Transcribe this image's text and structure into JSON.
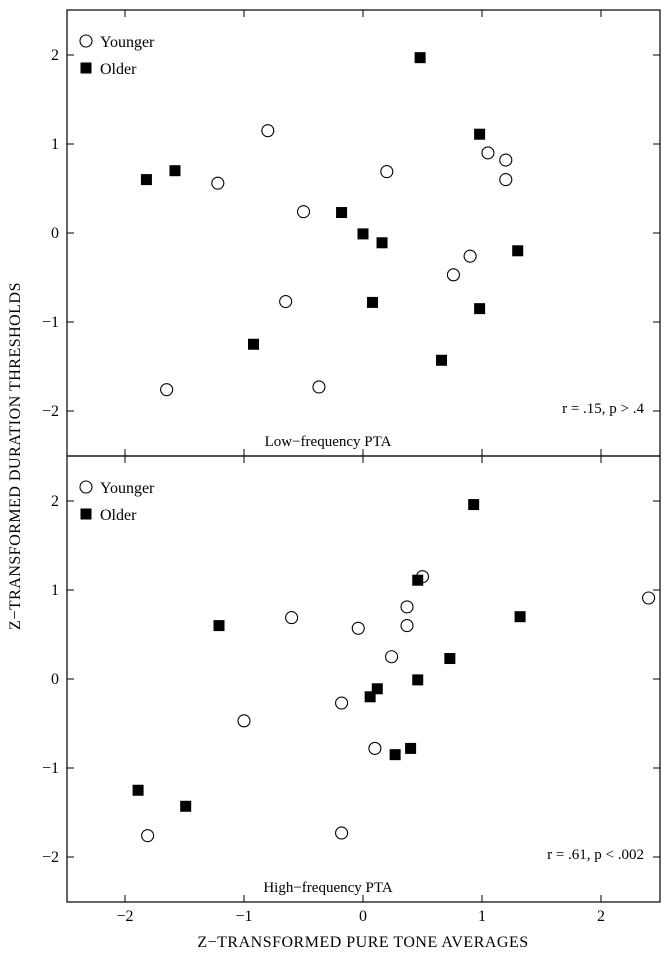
{
  "chart_data": {
    "type": "scatter",
    "xlabel": "Z−TRANSFORMED  PURE TONE  AVERAGES",
    "ylabel": "Z−TRANSFORMED  DURATION  THRESHOLDS",
    "xlim": [
      -2.5,
      2.5
    ],
    "x_ticks": [
      -2,
      -1,
      0,
      1,
      2
    ],
    "x_tick_labels": [
      "−2",
      "−1",
      "0",
      "1",
      "2"
    ],
    "grid": false,
    "legend_position": "top-left",
    "panels": [
      {
        "subtitle": "Low−frequency PTA",
        "annotation": "r = .15, p > .4",
        "ylim": [
          -2.5,
          2.5
        ],
        "y_ticks": [
          -2,
          -1,
          0,
          1,
          2
        ],
        "y_tick_labels": [
          "−2",
          "−1",
          "0",
          "1",
          "2"
        ],
        "series": [
          {
            "name": "Younger",
            "marker": "open-circle",
            "points": [
              [
                -0.8,
                1.15
              ],
              [
                -1.22,
                0.56
              ],
              [
                -0.5,
                0.24
              ],
              [
                0.2,
                0.69
              ],
              [
                1.05,
                0.9
              ],
              [
                1.2,
                0.82
              ],
              [
                1.2,
                0.6
              ],
              [
                0.9,
                -0.26
              ],
              [
                0.76,
                -0.47
              ],
              [
                -0.65,
                -0.77
              ],
              [
                -0.37,
                -1.73
              ],
              [
                -1.65,
                -1.76
              ]
            ]
          },
          {
            "name": "Older",
            "marker": "filled-square",
            "points": [
              [
                0.48,
                1.97
              ],
              [
                0.98,
                1.11
              ],
              [
                -1.82,
                0.6
              ],
              [
                -1.58,
                0.7
              ],
              [
                -0.18,
                0.23
              ],
              [
                0.0,
                -0.01
              ],
              [
                0.16,
                -0.11
              ],
              [
                1.3,
                -0.2
              ],
              [
                0.08,
                -0.78
              ],
              [
                0.98,
                -0.85
              ],
              [
                -0.92,
                -1.25
              ],
              [
                0.66,
                -1.43
              ]
            ]
          }
        ]
      },
      {
        "subtitle": "High−frequency PTA",
        "annotation": "r = .61, p < .002",
        "ylim": [
          -2.5,
          2.5
        ],
        "y_ticks": [
          -2,
          -1,
          0,
          1,
          2
        ],
        "y_tick_labels": [
          "−2",
          "−1",
          "0",
          "1",
          "2"
        ],
        "series": [
          {
            "name": "Younger",
            "marker": "open-circle",
            "points": [
              [
                0.5,
                1.15
              ],
              [
                2.4,
                0.91
              ],
              [
                0.37,
                0.81
              ],
              [
                -0.6,
                0.69
              ],
              [
                -0.04,
                0.57
              ],
              [
                0.37,
                0.6
              ],
              [
                0.24,
                0.25
              ],
              [
                -1.0,
                -0.47
              ],
              [
                -0.18,
                -0.27
              ],
              [
                0.1,
                -0.78
              ],
              [
                -1.81,
                -1.76
              ],
              [
                -0.18,
                -1.73
              ]
            ]
          },
          {
            "name": "Older",
            "marker": "filled-square",
            "points": [
              [
                0.93,
                1.96
              ],
              [
                0.46,
                1.11
              ],
              [
                1.32,
                0.7
              ],
              [
                -1.21,
                0.6
              ],
              [
                0.73,
                0.23
              ],
              [
                0.46,
                -0.01
              ],
              [
                0.12,
                -0.11
              ],
              [
                0.06,
                -0.2
              ],
              [
                0.4,
                -0.78
              ],
              [
                0.27,
                -0.85
              ],
              [
                -1.89,
                -1.25
              ],
              [
                -1.49,
                -1.43
              ]
            ]
          }
        ]
      }
    ]
  }
}
